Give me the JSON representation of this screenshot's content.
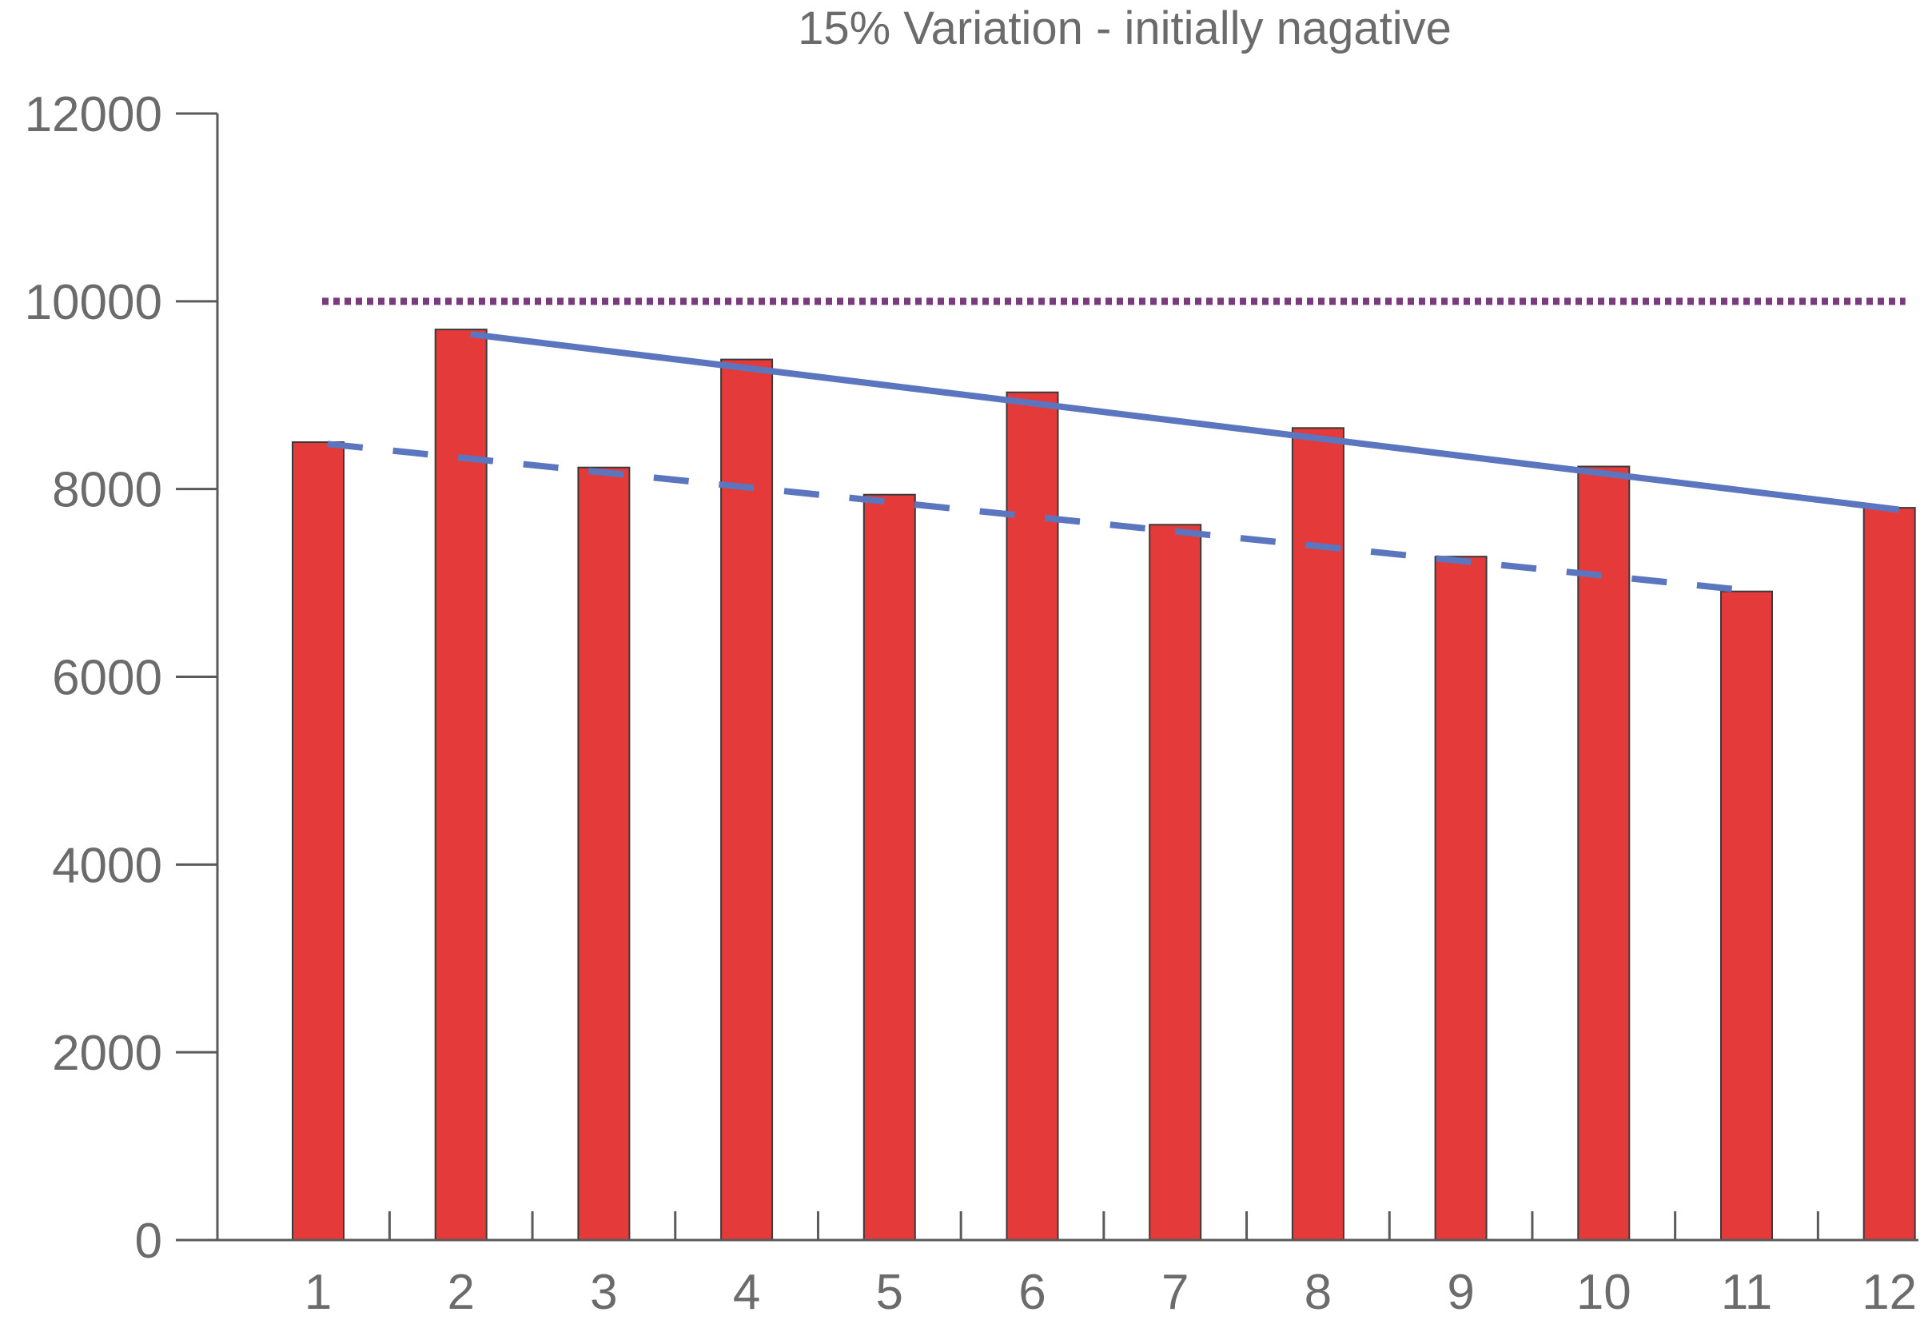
{
  "chart_data": {
    "type": "bar",
    "title": "15% Variation - initially nagative",
    "xlabel": "",
    "ylabel": "",
    "categories": [
      "1",
      "2",
      "3",
      "4",
      "5",
      "6",
      "7",
      "8",
      "9",
      "10",
      "11",
      "12"
    ],
    "values": [
      8500,
      9700,
      8230,
      9380,
      7940,
      9030,
      7620,
      8650,
      7280,
      8240,
      6910,
      7800
    ],
    "ylim": [
      0,
      12000
    ],
    "yticks": [
      "0",
      "2000",
      "4000",
      "6000",
      "8000",
      "10000",
      "12000"
    ],
    "grid": false,
    "reference_line": {
      "y": 10000,
      "from": "1",
      "to": "12",
      "style": "dotted",
      "color": "#7a3a7e"
    },
    "trend_lines": [
      {
        "style": "solid",
        "color": "#5b76bf",
        "points": [
          [
            "2",
            9650
          ],
          [
            "12",
            7780
          ]
        ]
      },
      {
        "style": "dashed",
        "color": "#5b76bf",
        "points": [
          [
            "1",
            8480
          ],
          [
            "11",
            6910
          ]
        ]
      }
    ],
    "colors": {
      "bars": "#e53a3a",
      "bar_edge": "#3a3a3a",
      "axis": "#5a5a5a",
      "text": "#6b6b6b"
    }
  }
}
